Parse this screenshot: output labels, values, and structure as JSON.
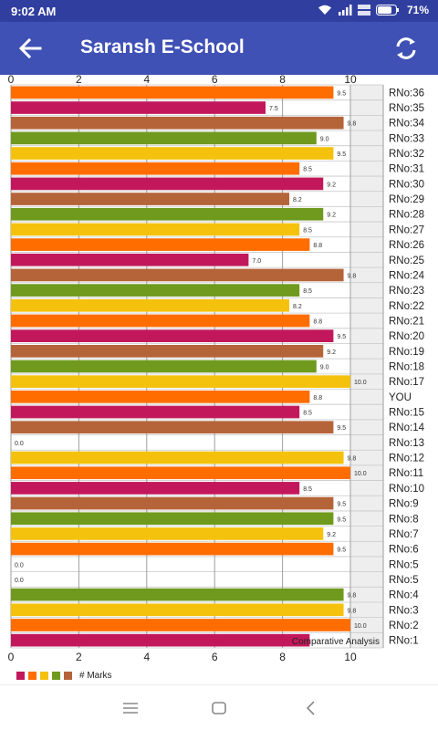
{
  "status_bar": {
    "time": "9:02 AM",
    "battery": "71%",
    "icons": [
      "wifi-icon",
      "signal-icon",
      "volte-icon",
      "battery-icon"
    ]
  },
  "app_bar": {
    "title": "Saransh E-School",
    "back_icon": "arrow-back-icon",
    "refresh_icon": "refresh-icon",
    "color": "#3f51b5"
  },
  "chart_data": {
    "type": "bar",
    "orientation": "horizontal",
    "title": "Comparative Analysis",
    "legend_label": "# Marks",
    "legend_colors": [
      "#c2185b",
      "#ff6d00",
      "#f4c20d",
      "#6f9a1e",
      "#b5643a"
    ],
    "xlim": [
      0,
      10
    ],
    "x_ticks": [
      "0",
      "2",
      "4",
      "6",
      "8",
      "10"
    ],
    "grid": true,
    "categories": [
      "RNo:36",
      "RNo:35",
      "RNo:34",
      "RNo:33",
      "RNo:32",
      "RNo:31",
      "RNo:30",
      "RNo:29",
      "RNo:28",
      "RNo:27",
      "RNo:26",
      "RNo:25",
      "RNo:24",
      "RNo:23",
      "RNo:22",
      "RNo:21",
      "RNo:20",
      "RNo:19",
      "RNo:18",
      "RNo:17",
      "YOU",
      "RNo:15",
      "RNo:14",
      "RNo:13",
      "RNo:12",
      "RNo:11",
      "RNo:10",
      "RNo:9",
      "RNo:8",
      "RNo:7",
      "RNo:6",
      "RNo:5",
      "RNo:5",
      "RNo:4",
      "RNo:3",
      "RNo:2",
      "RNo:1"
    ],
    "values": [
      9.5,
      7.5,
      9.8,
      9.0,
      9.5,
      8.5,
      9.2,
      8.2,
      9.2,
      8.5,
      8.8,
      7.0,
      9.8,
      8.5,
      8.2,
      8.8,
      9.5,
      9.2,
      9.0,
      10.0,
      8.8,
      8.5,
      9.5,
      0.0,
      9.8,
      10.0,
      8.5,
      9.5,
      9.5,
      9.2,
      9.5,
      0.0,
      0.0,
      9.8,
      9.8,
      10.0,
      8.8
    ],
    "value_labels": [
      "9.5",
      "7.5",
      "9.8",
      "9.0",
      "9.5",
      "8.5",
      "9.2",
      "8.2",
      "9.2",
      "8.5",
      "8.8",
      "7.0",
      "9.8",
      "8.5",
      "8.2",
      "8.8",
      "9.5",
      "9.2",
      "9.0",
      "10.0",
      "8.8",
      "8.5",
      "9.5",
      "0.0",
      "9.8",
      "10.0",
      "8.5",
      "9.5",
      "9.5",
      "9.2",
      "9.5",
      "0.0",
      "0.0",
      "9.8",
      "9.8",
      "10.0",
      ""
    ],
    "colors": [
      "#ff6d00",
      "#c2185b",
      "#b5643a",
      "#6f9a1e",
      "#f4c20d",
      "#ff6d00",
      "#c2185b",
      "#b5643a",
      "#6f9a1e",
      "#f4c20d",
      "#ff6d00",
      "#c2185b",
      "#b5643a",
      "#6f9a1e",
      "#f4c20d",
      "#ff6d00",
      "#c2185b",
      "#b5643a",
      "#6f9a1e",
      "#f4c20d",
      "#ff6d00",
      "#c2185b",
      "#b5643a",
      "#6f9a1e",
      "#f4c20d",
      "#ff6d00",
      "#c2185b",
      "#b5643a",
      "#6f9a1e",
      "#f4c20d",
      "#ff6d00",
      "#c2185b",
      "#b5643a",
      "#6f9a1e",
      "#f4c20d",
      "#ff6d00",
      "#c2185b"
    ]
  },
  "nav_bar": {
    "icons": [
      "menu-lines-icon",
      "home-square-icon",
      "back-chevron-icon"
    ]
  }
}
